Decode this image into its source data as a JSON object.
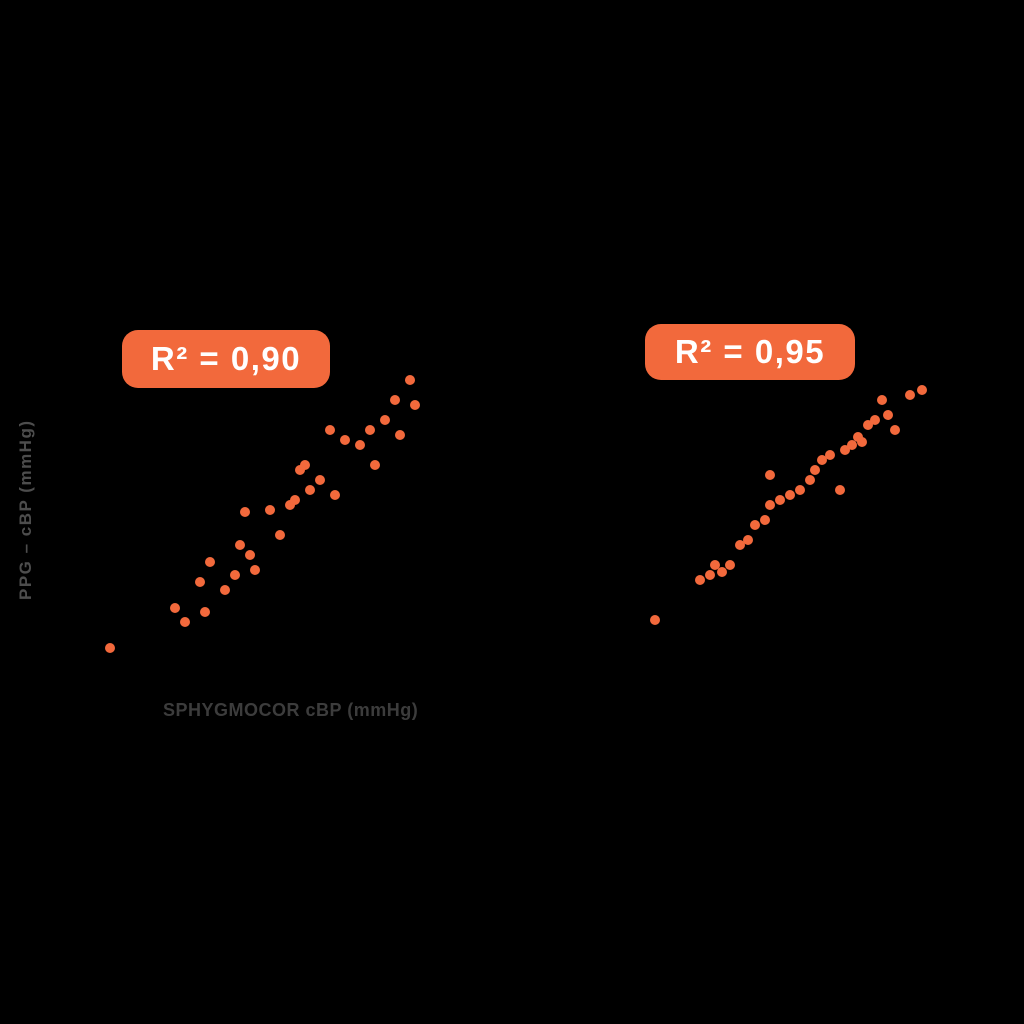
{
  "figure": {
    "background_color": "#000000",
    "accent_color": "#F2693C",
    "badge_text_color": "#FFFFFF",
    "x_label_color": "#3C3C3C",
    "y_label_color": "#4D4D4D"
  },
  "chart_data": [
    {
      "type": "scatter",
      "title": "",
      "r_squared_label": "R² = 0,90",
      "r_squared_value": 0.9,
      "xlabel": "SPHYGMOCOR cBP (mmHg)",
      "ylabel": "PPG – cBP (mmHg)",
      "xlim": [
        0,
        100
      ],
      "ylim": [
        0,
        100
      ],
      "grid": false,
      "axes_visible": false,
      "legend": "none",
      "marker_color": "#F2693C",
      "points": [
        [
          5.7,
          7.1
        ],
        [
          24.3,
          20.0
        ],
        [
          27.1,
          15.5
        ],
        [
          32.9,
          18.7
        ],
        [
          31.4,
          28.4
        ],
        [
          34.3,
          34.8
        ],
        [
          38.6,
          25.8
        ],
        [
          41.4,
          30.6
        ],
        [
          42.9,
          40.3
        ],
        [
          44.3,
          51.0
        ],
        [
          47.1,
          32.3
        ],
        [
          45.7,
          37.1
        ],
        [
          51.4,
          51.6
        ],
        [
          54.3,
          43.5
        ],
        [
          57.1,
          53.2
        ],
        [
          58.6,
          54.8
        ],
        [
          60.0,
          64.5
        ],
        [
          61.4,
          66.1
        ],
        [
          62.9,
          58.1
        ],
        [
          65.7,
          61.3
        ],
        [
          68.6,
          77.4
        ],
        [
          70.0,
          56.5
        ],
        [
          72.9,
          74.2
        ],
        [
          77.1,
          72.6
        ],
        [
          80.0,
          77.4
        ],
        [
          81.4,
          66.1
        ],
        [
          84.3,
          80.6
        ],
        [
          87.1,
          87.1
        ],
        [
          88.6,
          75.8
        ],
        [
          91.4,
          93.5
        ],
        [
          92.9,
          85.5
        ]
      ]
    },
    {
      "type": "scatter",
      "title": "",
      "r_squared_label": "R² = 0,95",
      "r_squared_value": 0.95,
      "xlabel": "",
      "ylabel": "",
      "xlim": [
        0,
        100
      ],
      "ylim": [
        0,
        100
      ],
      "grid": false,
      "axes_visible": false,
      "legend": "none",
      "marker_color": "#F2693C",
      "points": [
        [
          5.0,
          4.0
        ],
        [
          20.0,
          20.0
        ],
        [
          23.3,
          22.0
        ],
        [
          25.0,
          26.0
        ],
        [
          27.3,
          23.2
        ],
        [
          30.0,
          26.0
        ],
        [
          33.3,
          34.0
        ],
        [
          36.0,
          36.0
        ],
        [
          38.3,
          42.0
        ],
        [
          41.7,
          44.0
        ],
        [
          43.3,
          50.0
        ],
        [
          43.3,
          62.0
        ],
        [
          46.7,
          52.0
        ],
        [
          50.0,
          54.0
        ],
        [
          53.3,
          56.0
        ],
        [
          56.7,
          60.0
        ],
        [
          58.3,
          64.0
        ],
        [
          60.7,
          68.0
        ],
        [
          63.3,
          70.0
        ],
        [
          66.7,
          56.0
        ],
        [
          68.3,
          72.0
        ],
        [
          70.7,
          74.0
        ],
        [
          72.7,
          77.2
        ],
        [
          74.0,
          75.2
        ],
        [
          76.0,
          82.0
        ],
        [
          78.3,
          84.0
        ],
        [
          80.7,
          92.0
        ],
        [
          82.7,
          86.0
        ],
        [
          85.0,
          80.0
        ],
        [
          90.0,
          94.0
        ],
        [
          94.0,
          96.0
        ]
      ]
    }
  ]
}
